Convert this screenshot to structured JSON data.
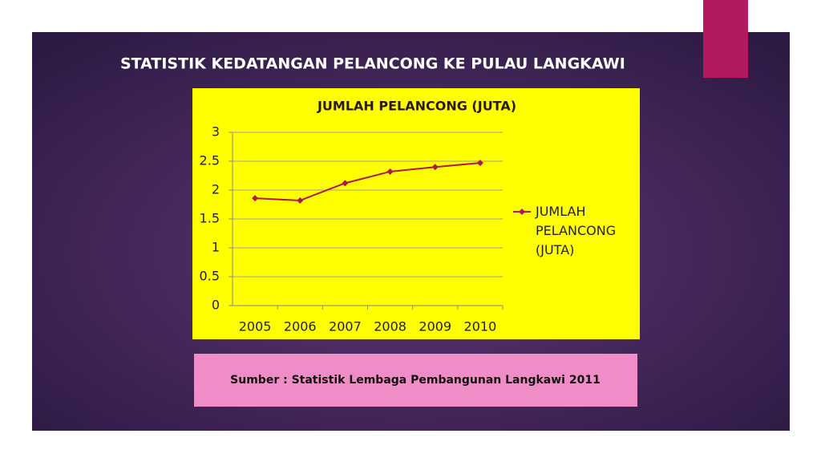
{
  "slide_title": "STATISTIK KEDATANGAN PELANCONG KE PULAU LANGKAWI",
  "source": "Sumber : Statistik Lembaga Pembangunan Langkawi 2011",
  "chart_data": {
    "type": "line",
    "title": "JUMLAH PELANCONG (JUTA)",
    "categories": [
      "2005",
      "2006",
      "2007",
      "2008",
      "2009",
      "2010"
    ],
    "series": [
      {
        "name": "JUMLAH PELANCONG (JUTA)",
        "color": "#b0174c",
        "values": [
          1.86,
          1.82,
          2.12,
          2.32,
          2.4,
          2.47
        ]
      }
    ],
    "ylim": [
      0,
      3
    ],
    "yticks": [
      0,
      0.5,
      1,
      1.5,
      2,
      2.5,
      3
    ],
    "grid": true,
    "legend": "right"
  }
}
